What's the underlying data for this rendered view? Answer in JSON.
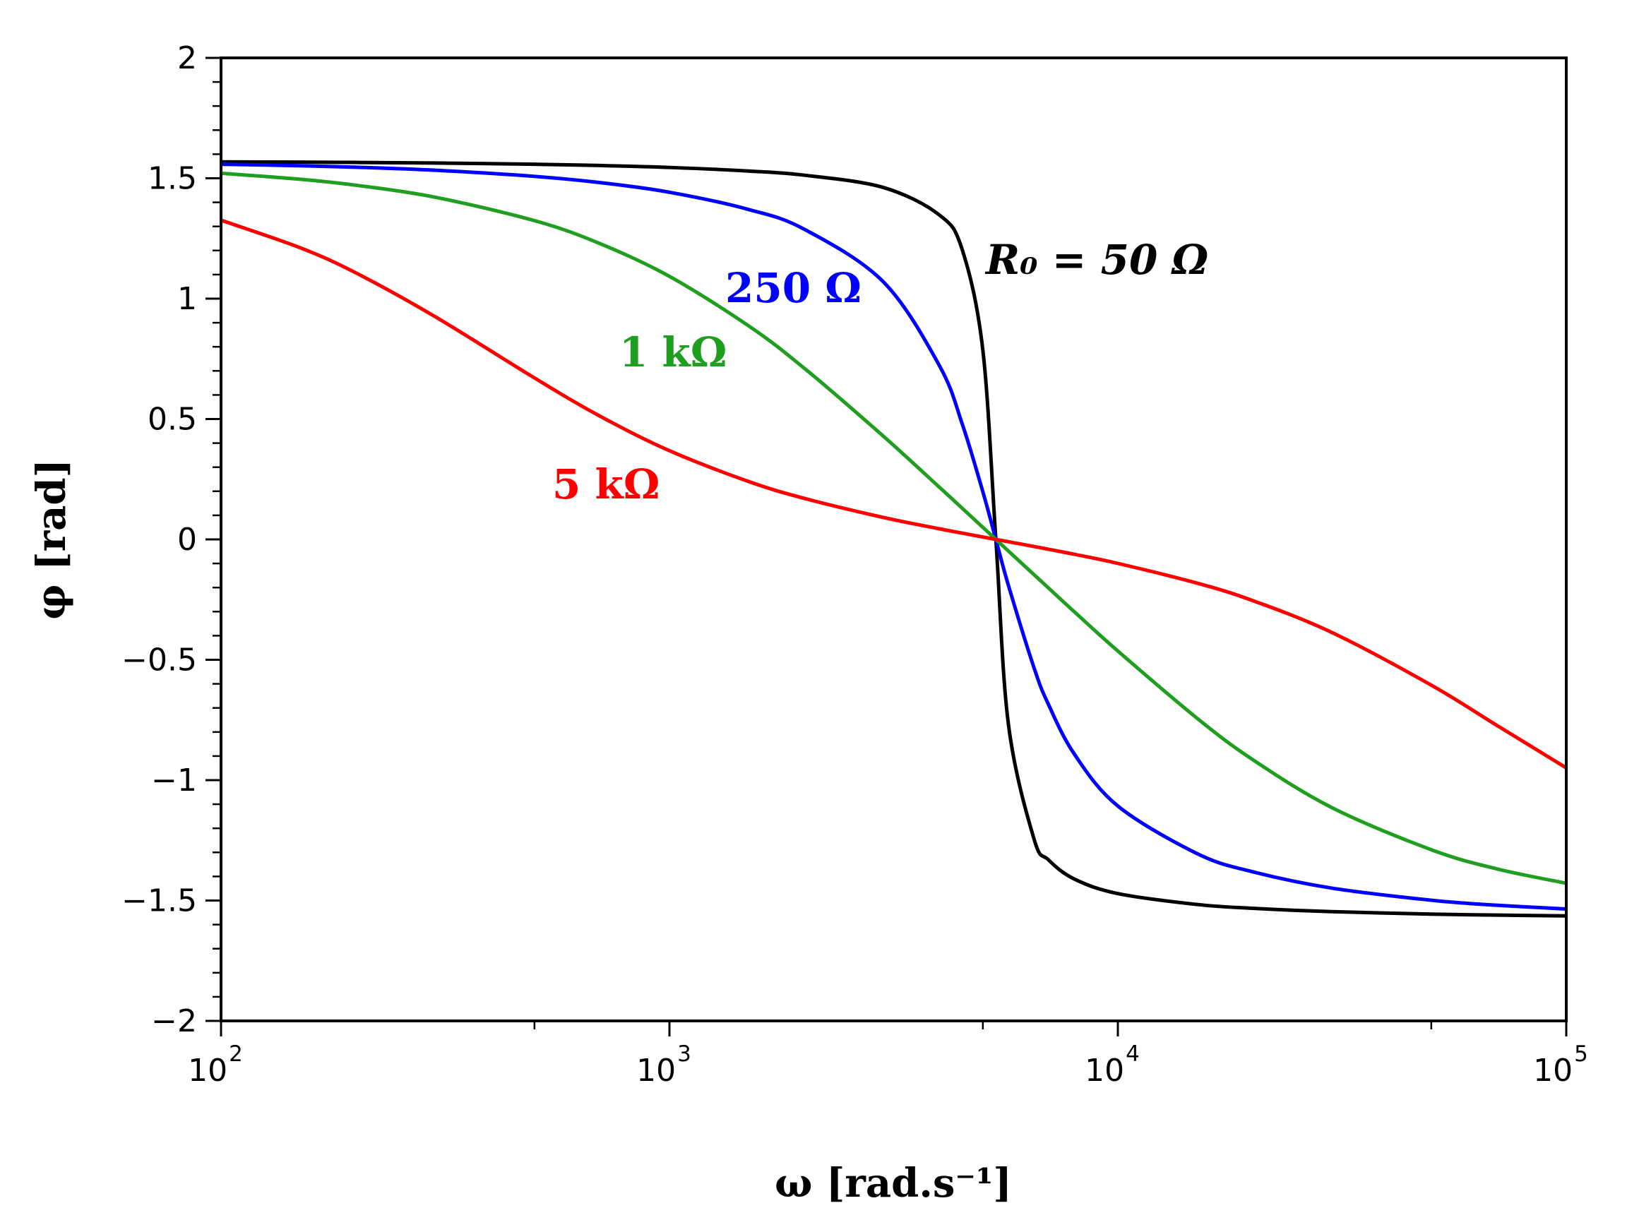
{
  "chart_data": {
    "type": "line",
    "title": "",
    "xlabel": "ω  [rad.s⁻¹]",
    "ylabel": "φ  [rad]",
    "xscale": "log",
    "xlim": [
      100,
      100000
    ],
    "ylim": [
      -2,
      2
    ],
    "grid": false,
    "x_ticks": [
      {
        "value": 100,
        "base": "10",
        "exp": "2"
      },
      {
        "value": 1000,
        "base": "10",
        "exp": "3"
      },
      {
        "value": 10000,
        "base": "10",
        "exp": "4"
      },
      {
        "value": 100000,
        "base": "10",
        "exp": "5"
      }
    ],
    "y_ticks": [
      {
        "value": 2,
        "label": "2"
      },
      {
        "value": 1.5,
        "label": "1.5"
      },
      {
        "value": 1,
        "label": "1"
      },
      {
        "value": 0.5,
        "label": "0.5"
      },
      {
        "value": 0,
        "label": "0"
      },
      {
        "value": -0.5,
        "label": "−0.5"
      },
      {
        "value": -1,
        "label": "−1"
      },
      {
        "value": -1.5,
        "label": "−1.5"
      },
      {
        "value": -2,
        "label": "−2"
      }
    ],
    "x": [
      100,
      150,
      200,
      300,
      500,
      700,
      1000,
      1500,
      2000,
      3000,
      4000,
      4500,
      5000,
      5345,
      5700,
      6500,
      7000,
      8000,
      10000,
      15000,
      20000,
      30000,
      50000,
      70000,
      100000
    ],
    "series": [
      {
        "label": "R₀ = 50 Ω",
        "color": "#000000",
        "values": [
          1.5683,
          1.567,
          1.5658,
          1.5633,
          1.5582,
          1.553,
          1.5449,
          1.5301,
          1.5127,
          1.4617,
          1.3473,
          1.202,
          0.785,
          0,
          -0.767,
          -1.2437,
          -1.3306,
          -1.4108,
          -1.4711,
          -1.5163,
          -1.5324,
          -1.5462,
          -1.5564,
          -1.5605,
          -1.5636
        ]
      },
      {
        "label": "250 Ω",
        "color": "#0000ff",
        "values": [
          1.5583,
          1.552,
          1.5458,
          1.5332,
          1.5079,
          1.482,
          1.442,
          1.3705,
          1.288,
          1.0697,
          0.7217,
          0.478,
          0.1974,
          0,
          -0.1904,
          -0.5326,
          -0.6851,
          -0.8921,
          -1.1074,
          -1.3046,
          -1.3808,
          -1.4485,
          -1.4987,
          -1.5195,
          -1.535
        ]
      },
      {
        "label": "1 kΩ",
        "color": "#1f9e1f",
        "values": [
          1.5208,
          1.4959,
          1.471,
          1.4215,
          1.3241,
          1.2286,
          1.0926,
          0.8876,
          0.7104,
          0.4285,
          0.2166,
          0.1288,
          0.05,
          0,
          -0.0481,
          -0.1463,
          -0.2015,
          -0.3009,
          -0.4637,
          -0.742,
          -0.9151,
          -1.114,
          -1.289,
          -1.3685,
          -1.4285
        ]
      },
      {
        "label": "5 kΩ",
        "color": "#ff0000",
        "values": [
          1.3258,
          1.2117,
          1.1068,
          0.9256,
          0.6707,
          0.5118,
          0.3685,
          0.2409,
          0.1703,
          0.091,
          0.044,
          0.0259,
          0.01,
          0,
          -0.0096,
          -0.0295,
          -0.0409,
          -0.0619,
          -0.0997,
          -0.1813,
          -0.2543,
          -0.3864,
          -0.6054,
          -0.7724,
          -0.9489
        ]
      }
    ]
  }
}
